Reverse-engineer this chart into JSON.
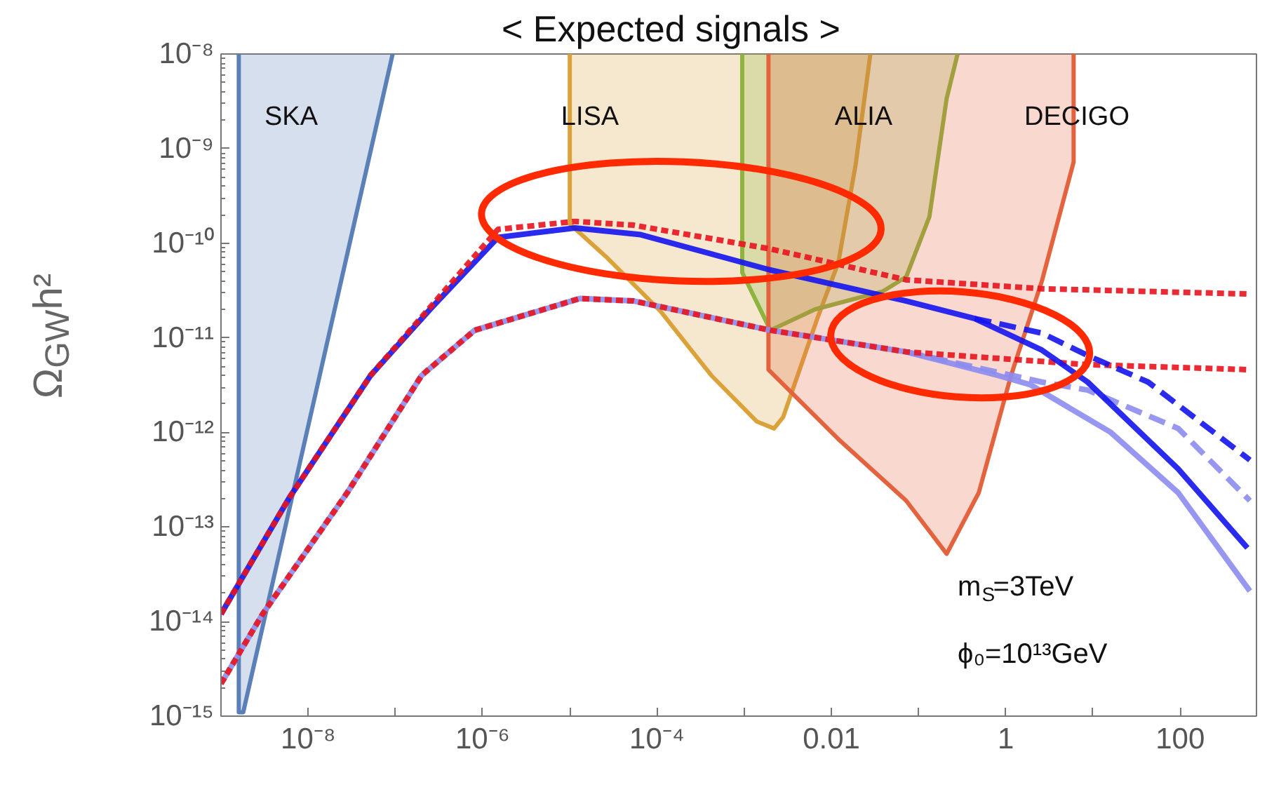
{
  "chart_data": {
    "type": "line",
    "title": "< Expected signals >",
    "ylabel": "Ω$_{GW}$h²",
    "log": "xy",
    "xlim": [
      1e-09,
      750
    ],
    "ylim": [
      1e-15,
      1e-08
    ],
    "xticks": [
      {
        "value": 1e-09,
        "label": null
      },
      {
        "value": 1e-08,
        "label": "10⁻⁸"
      },
      {
        "value": 1e-07,
        "label": null
      },
      {
        "value": 1e-06,
        "label": "10⁻⁶"
      },
      {
        "value": 1e-05,
        "label": null
      },
      {
        "value": 0.0001,
        "label": "10⁻⁴"
      },
      {
        "value": 0.001,
        "label": null
      },
      {
        "value": 0.01,
        "label": "0.01"
      },
      {
        "value": 0.1,
        "label": null
      },
      {
        "value": 1,
        "label": "1"
      },
      {
        "value": 10,
        "label": null
      },
      {
        "value": 100,
        "label": "100"
      }
    ],
    "yticks": [
      {
        "value": 1e-15,
        "label": "10⁻¹⁵"
      },
      {
        "value": 1e-14,
        "label": "10⁻¹⁴"
      },
      {
        "value": 1e-13,
        "label": "10⁻¹³"
      },
      {
        "value": 1e-12,
        "label": "10⁻¹²"
      },
      {
        "value": 1e-11,
        "label": "10⁻¹¹"
      },
      {
        "value": 1e-10,
        "label": "10⁻¹⁰"
      },
      {
        "value": 1e-09,
        "label": "10⁻⁹"
      },
      {
        "value": 1e-08,
        "label": "10⁻⁸"
      }
    ],
    "series": [
      {
        "type": "area",
        "name": "SKA",
        "color": "#5b80b8",
        "x": [
          1.6e-09,
          1.6e-09,
          1.8e-09,
          9.3e-08
        ],
        "values": [
          1e-08,
          1.1e-15,
          1.1e-15,
          1e-08
        ]
      },
      {
        "type": "area",
        "name": "LISA",
        "color": "#dba23a",
        "x": [
          1e-05,
          1e-05,
          2.6e-05,
          0.00011,
          0.00042,
          0.0014,
          0.0022,
          0.0028,
          0.0041,
          0.0069,
          0.012,
          0.019,
          0.028
        ],
        "values": [
          1e-08,
          1.6e-10,
          7.2e-11,
          1.9e-11,
          4e-12,
          1.3e-12,
          1.1e-12,
          1.45e-12,
          4e-12,
          1.6e-11,
          6.2e-11,
          6.8e-10,
          1e-08
        ]
      },
      {
        "type": "area",
        "name": "ALIA",
        "color": "#8db43e",
        "x": [
          0.00095,
          0.00095,
          0.002,
          0.0065,
          0.039,
          0.072,
          0.133,
          0.21,
          0.28
        ],
        "values": [
          1e-08,
          4.9e-11,
          1.2e-11,
          2e-11,
          3.1e-11,
          4.4e-11,
          1.9e-10,
          3.4e-09,
          1e-08
        ]
      },
      {
        "type": "area",
        "name": "DECIGO",
        "color": "#e4633f",
        "x": [
          0.0019,
          0.0019,
          0.012,
          0.072,
          0.21,
          0.49,
          1.15,
          2.6,
          6.0,
          6.0
        ],
        "values": [
          1e-08,
          4.6e-12,
          8.5e-13,
          1.9e-13,
          5.2e-14,
          2.3e-13,
          4e-12,
          4e-11,
          7.2e-10,
          1e-08
        ]
      },
      {
        "line_style": "solid",
        "color": "#8c8cf0",
        "x": [
          1e-09,
          3e-09,
          2.8e-08,
          2e-07,
          8.1e-07,
          1.3e-05,
          5.4e-05,
          0.002,
          0.072,
          0.81,
          1.9,
          16,
          95,
          630
        ],
        "values": [
          2.2e-15,
          1.2e-14,
          2.3e-13,
          4e-12,
          1.2e-11,
          2.6e-11,
          2.45e-11,
          1.2e-11,
          7.1e-12,
          4e-12,
          3.2e-12,
          1e-12,
          2.3e-13,
          2.1e-14
        ]
      },
      {
        "line_style": "dashed",
        "color": "#8c8cf0",
        "x": [
          0.072,
          2.6,
          8.7,
          95,
          630
        ],
        "values": [
          7.1e-12,
          3.4e-12,
          2.8e-12,
          1.1e-12,
          1.9e-13
        ]
      },
      {
        "line_style": "dotted",
        "color": "#e8141e",
        "x": [
          1e-09,
          3e-09,
          2.8e-08,
          2e-07,
          8.1e-07,
          1.3e-05,
          5.4e-05,
          0.002,
          0.072,
          0.44,
          8.7,
          630
        ],
        "values": [
          2.2e-15,
          1.2e-14,
          2.3e-13,
          4e-12,
          1.2e-11,
          2.6e-11,
          2.45e-11,
          1.2e-11,
          7.1e-12,
          6.3e-12,
          5.2e-12,
          4.6e-12
        ]
      },
      {
        "line_style": "solid",
        "color": "#1414ee",
        "x": [
          1e-09,
          6e-09,
          5.2e-08,
          2.5e-07,
          1.5e-06,
          1.15e-05,
          6.5e-05,
          0.002,
          0.072,
          0.44,
          2.6,
          8.7,
          95,
          590
        ],
        "values": [
          1.2e-14,
          2e-13,
          4e-12,
          2e-11,
          1.15e-10,
          1.45e-10,
          1.23e-10,
          5.2e-11,
          2.45e-11,
          1.6e-11,
          7.4e-12,
          3.4e-12,
          4.1e-13,
          6e-14
        ]
      },
      {
        "line_style": "dashed",
        "color": "#1414ee",
        "x": [
          0.44,
          2.6,
          8.7,
          43,
          630
        ],
        "values": [
          1.6e-11,
          1.12e-11,
          6.5e-12,
          3.4e-12,
          5.1e-13
        ]
      },
      {
        "line_style": "dotted",
        "color": "#e8141e",
        "x": [
          1e-09,
          6e-09,
          5.2e-08,
          2.5e-07,
          1.5e-06,
          1.15e-05,
          5.4e-05,
          0.002,
          0.072,
          2.6,
          630
        ],
        "values": [
          1.2e-14,
          2e-13,
          4e-12,
          2.1e-11,
          1.4e-10,
          1.7e-10,
          1.55e-10,
          8.7e-11,
          4.1e-11,
          3.3e-11,
          2.9e-11
        ]
      }
    ],
    "annotations": [
      "m$_{S}$=3TeV",
      "ϕ₀=10¹³GeV"
    ]
  }
}
